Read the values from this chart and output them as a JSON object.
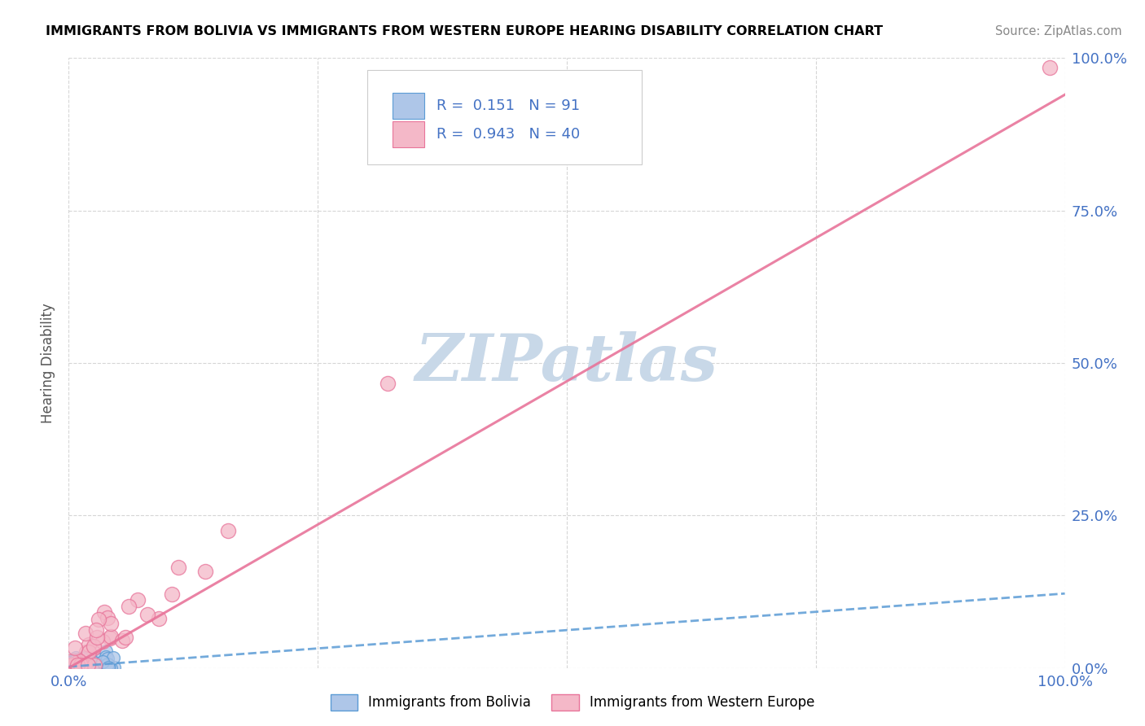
{
  "title": "IMMIGRANTS FROM BOLIVIA VS IMMIGRANTS FROM WESTERN EUROPE HEARING DISABILITY CORRELATION CHART",
  "source": "Source: ZipAtlas.com",
  "ylabel": "Hearing Disability",
  "bolivia_color": "#aec6e8",
  "bolivia_edge": "#5b9bd5",
  "western_europe_color": "#f4b8c8",
  "western_europe_edge": "#e8749a",
  "bolivia_R": 0.151,
  "bolivia_N": 91,
  "western_europe_R": 0.943,
  "western_europe_N": 40,
  "trend_bolivia_color": "#5b9bd5",
  "trend_we_color": "#e8749a",
  "background_color": "#ffffff",
  "grid_color": "#cccccc",
  "title_color": "#000000",
  "axis_tick_color": "#4472c4",
  "legend_R_color": "#4472c4",
  "watermark_color": "#c8d8e8",
  "bolivia_trend_slope": 0.12,
  "bolivia_trend_intercept": 0.002,
  "we_trend_slope": 0.96,
  "we_trend_intercept": -0.02
}
